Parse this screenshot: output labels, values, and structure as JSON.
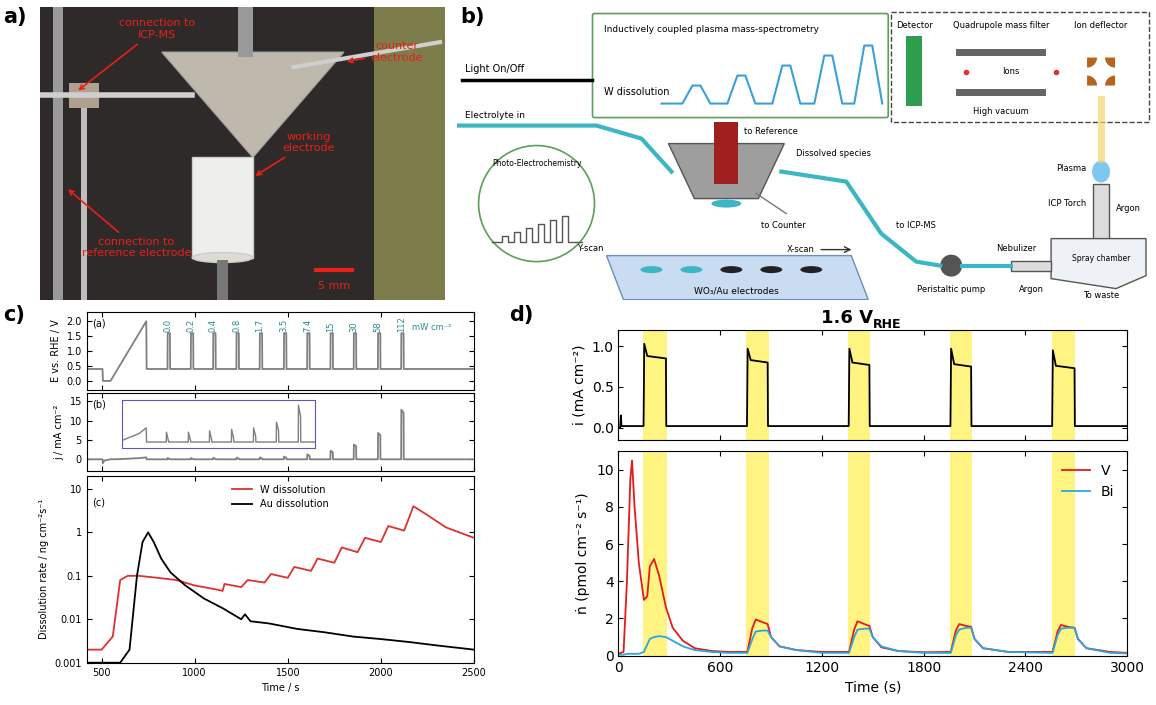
{
  "panel_labels": [
    "a)",
    "b)",
    "c)",
    "d)"
  ],
  "photo": {
    "labels": {
      "icpms": "connection to\nICP-MS",
      "counter": "counter\nelectrode",
      "working": "working\nelectrode",
      "reference": "connection to\nreference electrode"
    },
    "scale_bar": "5 mm"
  },
  "diagram": {
    "texts": {
      "light": "Light On/Off",
      "icpms_title": "Inductively coupled plasma mass-spectrometry",
      "w_dissolution": "W dissolution",
      "detector": "Detector",
      "quadrupole": "Quadrupole mass filter",
      "ion_deflector": "Ion deflector",
      "ions": "Ions",
      "high_vacuum": "High vacuum",
      "plasma": "Plasma",
      "icp_torch": "ICP Torch",
      "argon_torch": "Argon",
      "argon_nebulizer": "Argon",
      "spray_chamber": "Spray chamber",
      "to_waste": "To waste",
      "nebulizer": "Nebulizer",
      "pump": "Peristaltic pump",
      "to_icpms": "to ICP-MS",
      "dissolved": "Dissolved species",
      "to_reference": "to Reference",
      "to_counter": "to Counter",
      "electrolyte_in": "Electrolyte in",
      "photo_ec": "Photo-Electrochemistry",
      "y_scan": "Y-scan",
      "x_scan": "X-scan",
      "electrodes": "WO₃/Au electrodes"
    }
  },
  "chart_data": [
    {
      "type": "line",
      "panel": "(a)",
      "y_label": "E vs. RHE / V",
      "color": "#7f7f7f",
      "x": [
        420,
        505,
        507,
        548,
        740,
        742,
        854,
        855,
        867,
        868,
        979,
        980,
        992,
        993,
        1099,
        1100,
        1112,
        1113,
        1224,
        1225,
        1237,
        1238,
        1349,
        1350,
        1362,
        1363,
        1479,
        1480,
        1492,
        1493,
        1604,
        1605,
        1617,
        1618,
        1729,
        1730,
        1742,
        1743,
        1854,
        1855,
        1867,
        1868,
        1984,
        1985,
        1997,
        1998,
        2109,
        2110,
        2122,
        2123,
        2500
      ],
      "values": [
        0.4,
        0.4,
        0.0,
        0.0,
        2.0,
        0.4,
        0.4,
        1.6,
        1.6,
        0.4,
        0.4,
        1.6,
        1.6,
        0.4,
        0.4,
        1.6,
        1.6,
        0.4,
        0.4,
        1.6,
        1.6,
        0.4,
        0.4,
        1.6,
        1.6,
        0.4,
        0.4,
        1.6,
        1.6,
        0.4,
        0.4,
        1.6,
        1.6,
        0.4,
        0.4,
        1.6,
        1.6,
        0.4,
        0.4,
        1.6,
        1.6,
        0.4,
        0.4,
        1.6,
        1.6,
        0.4,
        0.4,
        1.6,
        1.6,
        0.4,
        0.4
      ],
      "xlim": [
        420,
        2500
      ],
      "xticks": [
        500,
        1000,
        1500,
        2000,
        2500
      ],
      "ylim": [
        -0.3,
        2.3
      ],
      "yticks": [
        {
          "value": 0,
          "label": "0.0"
        },
        0.5,
        1.0,
        1.5,
        {
          "value": 2,
          "label": "2.0"
        }
      ],
      "tick_labels": "y",
      "annotations": {
        "x": [
          855,
          980,
          1100,
          1225,
          1350,
          1480,
          1605,
          1730,
          1855,
          1985,
          2110
        ],
        "values": [
          0.0,
          0.2,
          0.4,
          0.8,
          1.7,
          3.5,
          7.4,
          15,
          30,
          58,
          112
        ],
        "unit": "mW cm⁻²",
        "color": "#2a8c8c"
      }
    },
    {
      "type": "line",
      "panel": "(b)",
      "y_label": "j / mA cm⁻²",
      "color": "#7f7f7f",
      "x": [
        420,
        505,
        507,
        515,
        548,
        600,
        700,
        740,
        742,
        854,
        855,
        867,
        868,
        979,
        980,
        992,
        993,
        1099,
        1100,
        1112,
        1113,
        1224,
        1225,
        1237,
        1238,
        1349,
        1350,
        1362,
        1363,
        1479,
        1480,
        1492,
        1493,
        1604,
        1605,
        1617,
        1618,
        1729,
        1730,
        1742,
        1743,
        1854,
        1855,
        1867,
        1868,
        1984,
        1985,
        1997,
        1998,
        2109,
        2110,
        2122,
        2123,
        2500
      ],
      "values": [
        0,
        0,
        -1.0,
        -0.3,
        0,
        0.05,
        0.3,
        0.5,
        0,
        0,
        0.35,
        0.02,
        0,
        0,
        0.35,
        0.05,
        0,
        0,
        0.4,
        0.08,
        0,
        0,
        0.45,
        0.12,
        0,
        0,
        0.5,
        0.2,
        0,
        0,
        0.7,
        0.4,
        0,
        0,
        1.3,
        0.9,
        0,
        0,
        2.2,
        1.8,
        0,
        0,
        3.8,
        3.4,
        0,
        0,
        6.8,
        6.2,
        0,
        0,
        12.8,
        12.0,
        0,
        0
      ],
      "xlim": [
        420,
        2500
      ],
      "xticks": [
        500,
        1000,
        1500,
        2000,
        2500
      ],
      "ylim": [
        -3,
        17
      ],
      "yticks": [
        0,
        5,
        10,
        15
      ],
      "tick_labels": "y",
      "inset": {
        "xlim": [
          600,
          1700
        ],
        "ylim": [
          -0.2,
          1.5
        ],
        "color": "#5a5ab4"
      }
    },
    {
      "type": "line",
      "panel": "(c)",
      "y_label": "Dissolution rate / ng cm⁻²s⁻¹",
      "x_label": "Time / s",
      "log": "y",
      "series": [
        {
          "name": "W dissolution",
          "color": "#e03030",
          "x": [
            420,
            500,
            560,
            600,
            640,
            700,
            800,
            900,
            1000,
            1100,
            1150,
            1160,
            1250,
            1285,
            1375,
            1410,
            1500,
            1535,
            1625,
            1660,
            1750,
            1790,
            1875,
            1915,
            2000,
            2040,
            2125,
            2175,
            2250,
            2350,
            2500
          ],
          "values": [
            0.002,
            0.002,
            0.004,
            0.08,
            0.1,
            0.1,
            0.09,
            0.08,
            0.06,
            0.05,
            0.045,
            0.065,
            0.055,
            0.08,
            0.07,
            0.11,
            0.09,
            0.16,
            0.13,
            0.25,
            0.2,
            0.45,
            0.35,
            0.75,
            0.6,
            1.4,
            1.1,
            4.0,
            2.5,
            1.3,
            0.75
          ]
        },
        {
          "name": "Au dissolution",
          "color": "#000000",
          "x": [
            420,
            600,
            650,
            690,
            720,
            750,
            780,
            820,
            870,
            950,
            1050,
            1150,
            1250,
            1270,
            1300,
            1400,
            1550,
            1700,
            1850,
            2000,
            2150,
            2300,
            2500
          ],
          "values": [
            0.001,
            0.001,
            0.002,
            0.1,
            0.6,
            1.0,
            0.6,
            0.25,
            0.12,
            0.06,
            0.03,
            0.018,
            0.01,
            0.013,
            0.009,
            0.008,
            0.006,
            0.005,
            0.004,
            0.0035,
            0.003,
            0.0025,
            0.002
          ]
        }
      ],
      "xlim": [
        420,
        2500
      ],
      "xticks": [
        500,
        1000,
        1500,
        2000,
        2500
      ],
      "ylim": [
        0.001,
        20
      ],
      "yticks": [
        0.001,
        0.01,
        0.1,
        1,
        10
      ],
      "legend": "upper center"
    },
    {
      "type": "line",
      "title": "1.6 V",
      "title_subscript": "RHE",
      "y_label": "i (mA cm⁻²)",
      "color": "#000000",
      "x": [
        0,
        10,
        14,
        18,
        30,
        148,
        150,
        152,
        170,
        280,
        282,
        300,
        758,
        760,
        762,
        780,
        880,
        882,
        900,
        1358,
        1360,
        1362,
        1380,
        1480,
        1482,
        1500,
        1958,
        1960,
        1962,
        1980,
        2080,
        2082,
        2100,
        2558,
        2560,
        2562,
        2580,
        2690,
        2692,
        3000
      ],
      "values": [
        0.0,
        0.0,
        0.15,
        0.02,
        0.02,
        0.02,
        0.5,
        1.03,
        0.88,
        0.85,
        0.02,
        0.02,
        0.02,
        0.5,
        0.97,
        0.83,
        0.8,
        0.02,
        0.02,
        0.02,
        0.5,
        0.97,
        0.8,
        0.77,
        0.02,
        0.02,
        0.02,
        0.5,
        0.97,
        0.78,
        0.75,
        0.02,
        0.02,
        0.02,
        0.5,
        0.95,
        0.76,
        0.73,
        0.02,
        0.02
      ],
      "light_on": [
        [
          145,
          285
        ],
        [
          755,
          885
        ],
        [
          1355,
          1485
        ],
        [
          1955,
          2085
        ],
        [
          2555,
          2695
        ]
      ],
      "xlim": [
        0,
        3000
      ],
      "xticks": [
        0,
        600,
        1200,
        1800,
        2400,
        3000
      ],
      "ylim": [
        -0.15,
        1.2
      ],
      "yticks": [
        {
          "value": 0,
          "label": "0.0"
        },
        0.5,
        {
          "value": 1,
          "label": "1.0"
        }
      ],
      "tick_labels": "y"
    },
    {
      "type": "line",
      "x_label": "Time (s)",
      "y_label": "ṅ (pmol cm⁻² s⁻¹)",
      "x": [
        0,
        30,
        50,
        70,
        80,
        95,
        120,
        150,
        170,
        185,
        210,
        240,
        280,
        320,
        380,
        450,
        550,
        650,
        760,
        790,
        810,
        850,
        880,
        900,
        950,
        1050,
        1200,
        1360,
        1390,
        1410,
        1450,
        1480,
        1500,
        1550,
        1650,
        1800,
        1960,
        1990,
        2010,
        2050,
        2080,
        2100,
        2150,
        2300,
        2560,
        2590,
        2610,
        2650,
        2690,
        2710,
        2760,
        2900,
        3000
      ],
      "series": [
        {
          "name": "V",
          "color": "#e41a1c",
          "values": [
            0.1,
            0.2,
            4.0,
            9.5,
            10.5,
            8.0,
            5.0,
            3.0,
            3.2,
            4.8,
            5.2,
            4.3,
            2.6,
            1.5,
            0.8,
            0.4,
            0.25,
            0.2,
            0.2,
            1.5,
            1.95,
            1.8,
            1.7,
            1.0,
            0.5,
            0.3,
            0.2,
            0.2,
            1.4,
            1.85,
            1.7,
            1.6,
            1.0,
            0.45,
            0.25,
            0.18,
            0.2,
            1.35,
            1.7,
            1.6,
            1.55,
            0.9,
            0.4,
            0.2,
            0.2,
            1.3,
            1.65,
            1.55,
            1.5,
            0.9,
            0.4,
            0.2,
            0.15
          ]
        },
        {
          "name": "Bi",
          "color": "#2aa7df",
          "values": [
            0.05,
            0.05,
            0.1,
            0.1,
            0.1,
            0.1,
            0.1,
            0.2,
            0.6,
            0.9,
            1.0,
            1.05,
            1.0,
            0.8,
            0.5,
            0.3,
            0.2,
            0.15,
            0.15,
            0.9,
            1.3,
            1.35,
            1.35,
            1.0,
            0.5,
            0.3,
            0.15,
            0.15,
            1.0,
            1.4,
            1.45,
            1.45,
            1.0,
            0.5,
            0.25,
            0.15,
            0.15,
            1.1,
            1.4,
            1.5,
            1.5,
            0.9,
            0.4,
            0.2,
            0.15,
            1.1,
            1.45,
            1.5,
            1.5,
            0.9,
            0.4,
            0.15,
            0.12
          ]
        }
      ],
      "light_on": [
        [
          145,
          285
        ],
        [
          755,
          885
        ],
        [
          1355,
          1485
        ],
        [
          1955,
          2085
        ],
        [
          2555,
          2695
        ]
      ],
      "xlim": [
        0,
        3000
      ],
      "xticks": [
        0,
        600,
        1200,
        1800,
        2400,
        3000
      ],
      "ylim": [
        0,
        11
      ],
      "yticks": [
        0,
        2,
        4,
        6,
        8,
        10
      ],
      "legend": "upper right"
    }
  ]
}
